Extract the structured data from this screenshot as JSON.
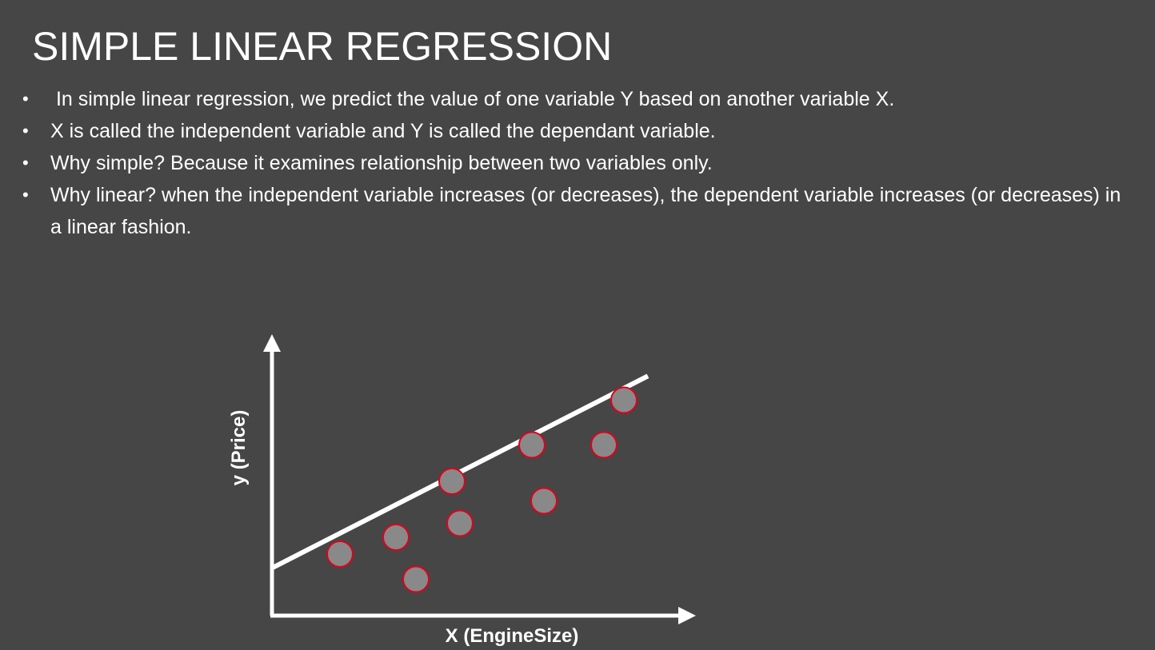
{
  "slide": {
    "title": "SIMPLE LINEAR REGRESSION",
    "bullets": [
      {
        "marker": "•",
        "text": " In simple linear regression, we predict the value of one variable Y based on another variable X."
      },
      {
        "marker": "•",
        "text": "X is called the independent variable and Y is called the dependant variable."
      },
      {
        "marker": "•",
        "text": "Why simple? Because it examines relationship between two variables only."
      },
      {
        "marker": "•",
        "text": "Why linear? when the independent variable increases (or decreases), the dependent variable increases (or decreases) in a linear fashion."
      }
    ]
  },
  "diagram": {
    "x_axis_label": "X (EngineSize)",
    "y_axis_label": "y (Price)",
    "colors": {
      "background": "#464646",
      "axis": "#ffffff",
      "line": "#ffffff",
      "point_fill": "#898989",
      "point_outline": "#e0001b"
    },
    "points": [
      {
        "x": 0.17,
        "y": 0.22
      },
      {
        "x": 0.31,
        "y": 0.28
      },
      {
        "x": 0.36,
        "y": 0.13
      },
      {
        "x": 0.45,
        "y": 0.48
      },
      {
        "x": 0.47,
        "y": 0.33
      },
      {
        "x": 0.65,
        "y": 0.61
      },
      {
        "x": 0.68,
        "y": 0.41
      },
      {
        "x": 0.83,
        "y": 0.61
      },
      {
        "x": 0.88,
        "y": 0.77
      }
    ],
    "regression_line": {
      "intercept": 0.17,
      "slope": 0.73,
      "x_end": 0.94
    }
  }
}
